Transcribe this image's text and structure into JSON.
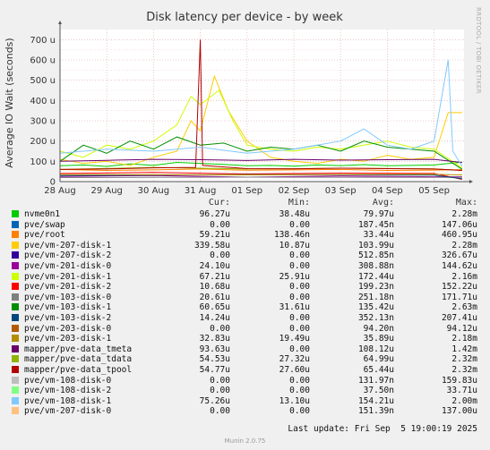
{
  "chart_data": {
    "type": "line",
    "title": "Disk latency per device - by week",
    "ylabel": "Average IO Wait (seconds)",
    "xlabel": "",
    "ylim": [
      0,
      750
    ],
    "yticks": [
      {
        "v": 0,
        "label": "0"
      },
      {
        "v": 100,
        "label": "100 u"
      },
      {
        "v": 200,
        "label": "200 u"
      },
      {
        "v": 300,
        "label": "300 u"
      },
      {
        "v": 400,
        "label": "400 u"
      },
      {
        "v": 500,
        "label": "500 u"
      },
      {
        "v": 600,
        "label": "600 u"
      },
      {
        "v": 700,
        "label": "700 u"
      }
    ],
    "xdomain": [
      0,
      8.64
    ],
    "xticks": [
      {
        "v": 0,
        "label": "28 Aug"
      },
      {
        "v": 1,
        "label": "29 Aug"
      },
      {
        "v": 2,
        "label": "30 Aug"
      },
      {
        "v": 3,
        "label": "31 Aug"
      },
      {
        "v": 4,
        "label": "01 Sep"
      },
      {
        "v": 5,
        "label": "02 Sep"
      },
      {
        "v": 6,
        "label": "03 Sep"
      },
      {
        "v": 7,
        "label": "04 Sep"
      },
      {
        "v": 8,
        "label": "05 Sep"
      }
    ],
    "grid": true,
    "series": [
      {
        "name": "nvme0n1",
        "color": "#00cc00",
        "values": [
          [
            0,
            78
          ],
          [
            0.5,
            82
          ],
          [
            1,
            75
          ],
          [
            1.5,
            88
          ],
          [
            2,
            80
          ],
          [
            2.5,
            95
          ],
          [
            3,
            90
          ],
          [
            3.5,
            85
          ],
          [
            4,
            78
          ],
          [
            4.5,
            80
          ],
          [
            5,
            76
          ],
          [
            5.5,
            82
          ],
          [
            6,
            79
          ],
          [
            6.5,
            84
          ],
          [
            7,
            78
          ],
          [
            7.5,
            80
          ],
          [
            8,
            82
          ],
          [
            8.6,
            96
          ]
        ]
      },
      {
        "name": "pve/swap",
        "color": "#0066b3",
        "values": [
          [
            0,
            0
          ],
          [
            8.6,
            0
          ]
        ]
      },
      {
        "name": "pve/root",
        "color": "#ff8000",
        "values": [
          [
            0,
            60
          ],
          [
            1,
            55
          ],
          [
            2,
            58
          ],
          [
            3,
            62
          ],
          [
            4,
            56
          ],
          [
            5,
            58
          ],
          [
            6,
            60
          ],
          [
            7,
            55
          ],
          [
            8,
            57
          ],
          [
            8.6,
            59
          ]
        ]
      },
      {
        "name": "pve/vm-207-disk-1",
        "color": "#ffcc00",
        "values": [
          [
            0,
            110
          ],
          [
            0.5,
            90
          ],
          [
            1,
            100
          ],
          [
            1.5,
            80
          ],
          [
            2,
            120
          ],
          [
            2.5,
            150
          ],
          [
            2.8,
            300
          ],
          [
            3,
            250
          ],
          [
            3.3,
            520
          ],
          [
            3.6,
            350
          ],
          [
            4,
            200
          ],
          [
            4.5,
            120
          ],
          [
            5,
            100
          ],
          [
            5.5,
            90
          ],
          [
            6,
            110
          ],
          [
            6.5,
            100
          ],
          [
            7,
            130
          ],
          [
            7.5,
            110
          ],
          [
            8,
            120
          ],
          [
            8.3,
            340
          ],
          [
            8.6,
            340
          ]
        ]
      },
      {
        "name": "pve/vm-207-disk-2",
        "color": "#330099",
        "values": [
          [
            0,
            0
          ],
          [
            8.6,
            0
          ]
        ]
      },
      {
        "name": "pve/vm-201-disk-0",
        "color": "#990099",
        "values": [
          [
            0,
            25
          ],
          [
            2,
            30
          ],
          [
            4,
            22
          ],
          [
            6,
            28
          ],
          [
            8,
            24
          ],
          [
            8.6,
            24
          ]
        ]
      },
      {
        "name": "pve/vm-201-disk-1",
        "color": "#ccff00",
        "values": [
          [
            0,
            150
          ],
          [
            0.5,
            120
          ],
          [
            1,
            180
          ],
          [
            1.5,
            160
          ],
          [
            2,
            200
          ],
          [
            2.5,
            280
          ],
          [
            2.8,
            420
          ],
          [
            3,
            380
          ],
          [
            3.4,
            450
          ],
          [
            3.7,
            300
          ],
          [
            4,
            180
          ],
          [
            4.5,
            160
          ],
          [
            5,
            150
          ],
          [
            5.5,
            170
          ],
          [
            6,
            160
          ],
          [
            6.5,
            180
          ],
          [
            7,
            200
          ],
          [
            7.5,
            170
          ],
          [
            8,
            160
          ],
          [
            8.6,
            67
          ]
        ]
      },
      {
        "name": "pve/vm-201-disk-2",
        "color": "#ff0000",
        "values": [
          [
            0,
            40
          ],
          [
            2,
            45
          ],
          [
            4,
            38
          ],
          [
            6,
            42
          ],
          [
            8,
            40
          ],
          [
            8.6,
            11
          ]
        ]
      },
      {
        "name": "pve/vm-103-disk-0",
        "color": "#808080",
        "values": [
          [
            0,
            20
          ],
          [
            4,
            22
          ],
          [
            8,
            21
          ],
          [
            8.6,
            21
          ]
        ]
      },
      {
        "name": "pve/vm-103-disk-1",
        "color": "#008f00",
        "values": [
          [
            0,
            100
          ],
          [
            0.5,
            180
          ],
          [
            1,
            140
          ],
          [
            1.5,
            200
          ],
          [
            2,
            160
          ],
          [
            2.5,
            220
          ],
          [
            3,
            180
          ],
          [
            3.5,
            190
          ],
          [
            4,
            150
          ],
          [
            4.5,
            170
          ],
          [
            5,
            160
          ],
          [
            5.5,
            180
          ],
          [
            6,
            150
          ],
          [
            6.5,
            200
          ],
          [
            7,
            170
          ],
          [
            7.5,
            160
          ],
          [
            8,
            150
          ],
          [
            8.6,
            61
          ]
        ]
      },
      {
        "name": "pve/vm-103-disk-2",
        "color": "#00487d",
        "values": [
          [
            0,
            30
          ],
          [
            4,
            35
          ],
          [
            8,
            32
          ],
          [
            8.6,
            14
          ]
        ]
      },
      {
        "name": "pve/vm-203-disk-0",
        "color": "#b35a00",
        "values": [
          [
            0,
            0
          ],
          [
            8.6,
            0
          ]
        ]
      },
      {
        "name": "pve/vm-203-disk-1",
        "color": "#b38f00",
        "values": [
          [
            0,
            35
          ],
          [
            4,
            33
          ],
          [
            8,
            36
          ],
          [
            8.6,
            33
          ]
        ]
      },
      {
        "name": "mapper/pve-data_tmeta",
        "color": "#6b006b",
        "values": [
          [
            0,
            100
          ],
          [
            1,
            105
          ],
          [
            2,
            110
          ],
          [
            3,
            108
          ],
          [
            4,
            104
          ],
          [
            5,
            110
          ],
          [
            6,
            106
          ],
          [
            7,
            108
          ],
          [
            8,
            110
          ],
          [
            8.6,
            94
          ]
        ]
      },
      {
        "name": "mapper/pve-data_tdata",
        "color": "#8fb300",
        "values": [
          [
            0,
            60
          ],
          [
            1,
            65
          ],
          [
            2,
            70
          ],
          [
            3,
            66
          ],
          [
            4,
            62
          ],
          [
            5,
            64
          ],
          [
            6,
            66
          ],
          [
            7,
            65
          ],
          [
            8,
            63
          ],
          [
            8.6,
            55
          ]
        ]
      },
      {
        "name": "mapper/pve-data_tpool",
        "color": "#b30000",
        "values": [
          [
            0,
            60
          ],
          [
            1,
            62
          ],
          [
            2,
            68
          ],
          [
            2.9,
            70
          ],
          [
            3.0,
            700
          ],
          [
            3.05,
            80
          ],
          [
            4,
            64
          ],
          [
            5,
            63
          ],
          [
            6,
            66
          ],
          [
            7,
            64
          ],
          [
            8,
            62
          ],
          [
            8.6,
            55
          ]
        ]
      },
      {
        "name": "pve/vm-108-disk-0",
        "color": "#bebebe",
        "values": [
          [
            0,
            0
          ],
          [
            8.6,
            0
          ]
        ]
      },
      {
        "name": "pve/vm-108-disk-2",
        "color": "#80ff80",
        "values": [
          [
            0,
            0
          ],
          [
            8.6,
            0
          ]
        ]
      },
      {
        "name": "pve/vm-108-disk-1",
        "color": "#80c9ff",
        "values": [
          [
            0,
            140
          ],
          [
            1,
            160
          ],
          [
            2,
            150
          ],
          [
            3,
            170
          ],
          [
            4,
            140
          ],
          [
            5,
            160
          ],
          [
            6,
            200
          ],
          [
            6.5,
            260
          ],
          [
            7,
            180
          ],
          [
            7.5,
            160
          ],
          [
            8,
            200
          ],
          [
            8.3,
            600
          ],
          [
            8.4,
            150
          ],
          [
            8.6,
            75
          ]
        ]
      },
      {
        "name": "pve/vm-207-disk-0",
        "color": "#ffc080",
        "values": [
          [
            0,
            0
          ],
          [
            8.6,
            0
          ]
        ]
      }
    ]
  },
  "legend": {
    "headers": {
      "cur": "Cur:",
      "min": "Min:",
      "avg": "Avg:",
      "max": "Max:"
    },
    "rows": [
      {
        "name": "nvme0n1",
        "color": "#00cc00",
        "cur": "96.27u",
        "min": "38.48u",
        "avg": "79.97u",
        "max": "2.28m"
      },
      {
        "name": "pve/swap",
        "color": "#0066b3",
        "cur": "0.00",
        "min": "0.00",
        "avg": "187.45n",
        "max": "147.06u"
      },
      {
        "name": "pve/root",
        "color": "#ff8000",
        "cur": "59.21u",
        "min": "138.46n",
        "avg": "33.44u",
        "max": "460.95u"
      },
      {
        "name": "pve/vm-207-disk-1",
        "color": "#ffcc00",
        "cur": "339.58u",
        "min": "10.87u",
        "avg": "103.99u",
        "max": "2.28m"
      },
      {
        "name": "pve/vm-207-disk-2",
        "color": "#330099",
        "cur": "0.00",
        "min": "0.00",
        "avg": "512.85n",
        "max": "326.67u"
      },
      {
        "name": "pve/vm-201-disk-0",
        "color": "#990099",
        "cur": "24.10u",
        "min": "0.00",
        "avg": "308.88n",
        "max": "144.62u"
      },
      {
        "name": "pve/vm-201-disk-1",
        "color": "#ccff00",
        "cur": "67.21u",
        "min": "25.91u",
        "avg": "172.44u",
        "max": "2.16m"
      },
      {
        "name": "pve/vm-201-disk-2",
        "color": "#ff0000",
        "cur": "10.68u",
        "min": "0.00",
        "avg": "199.23n",
        "max": "152.22u"
      },
      {
        "name": "pve/vm-103-disk-0",
        "color": "#808080",
        "cur": "20.61u",
        "min": "0.00",
        "avg": "251.18n",
        "max": "171.71u"
      },
      {
        "name": "pve/vm-103-disk-1",
        "color": "#008f00",
        "cur": "60.65u",
        "min": "31.61u",
        "avg": "135.42u",
        "max": "2.63m"
      },
      {
        "name": "pve/vm-103-disk-2",
        "color": "#00487d",
        "cur": "14.24u",
        "min": "0.00",
        "avg": "352.13n",
        "max": "207.41u"
      },
      {
        "name": "pve/vm-203-disk-0",
        "color": "#b35a00",
        "cur": "0.00",
        "min": "0.00",
        "avg": "94.20n",
        "max": "94.12u"
      },
      {
        "name": "pve/vm-203-disk-1",
        "color": "#b38f00",
        "cur": "32.83u",
        "min": "19.49u",
        "avg": "35.89u",
        "max": "2.18m"
      },
      {
        "name": "mapper/pve-data_tmeta",
        "color": "#6b006b",
        "cur": "93.63u",
        "min": "0.00",
        "avg": "108.12u",
        "max": "1.42m"
      },
      {
        "name": "mapper/pve-data_tdata",
        "color": "#8fb300",
        "cur": "54.53u",
        "min": "27.32u",
        "avg": "64.99u",
        "max": "2.32m"
      },
      {
        "name": "mapper/pve-data_tpool",
        "color": "#b30000",
        "cur": "54.77u",
        "min": "27.60u",
        "avg": "65.44u",
        "max": "2.32m"
      },
      {
        "name": "pve/vm-108-disk-0",
        "color": "#bebebe",
        "cur": "0.00",
        "min": "0.00",
        "avg": "131.97n",
        "max": "159.83u"
      },
      {
        "name": "pve/vm-108-disk-2",
        "color": "#80ff80",
        "cur": "0.00",
        "min": "0.00",
        "avg": "37.50n",
        "max": "33.71u"
      },
      {
        "name": "pve/vm-108-disk-1",
        "color": "#80c9ff",
        "cur": "75.26u",
        "min": "13.10u",
        "avg": "154.21u",
        "max": "2.00m"
      },
      {
        "name": "pve/vm-207-disk-0",
        "color": "#ffc080",
        "cur": "0.00",
        "min": "0.00",
        "avg": "151.39n",
        "max": "137.00u"
      }
    ]
  },
  "footer": {
    "last_update": "Last update: Fri Sep  5 19:00:19 2025",
    "munin": "Munin 2.0.75"
  },
  "side_label": "RRDTOOL / TOBI OETIKER"
}
